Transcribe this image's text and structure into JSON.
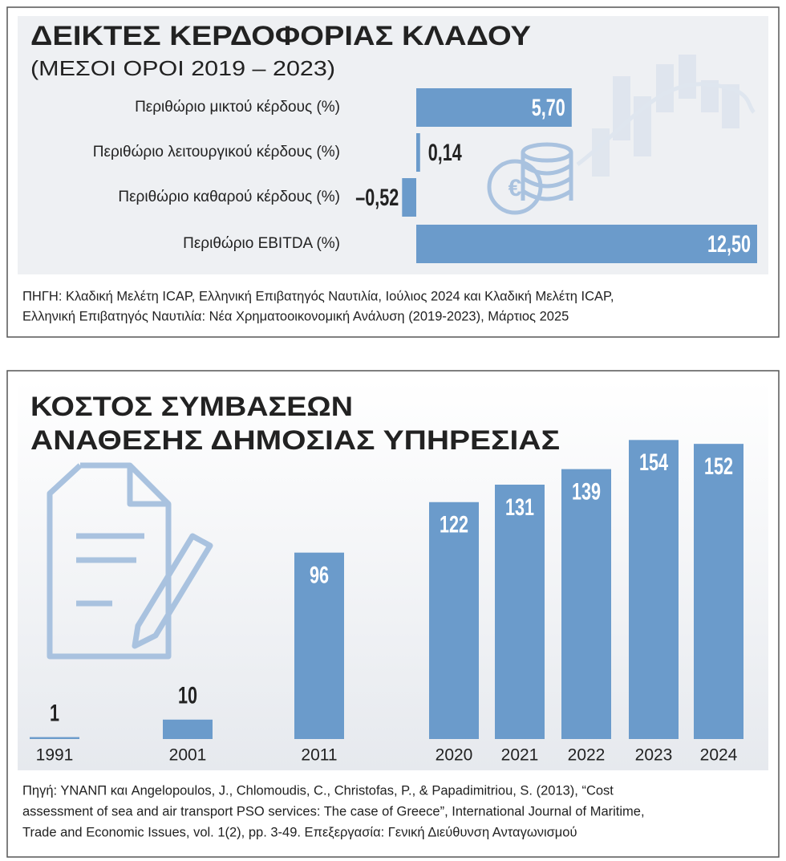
{
  "chart_data": [
    {
      "type": "bar",
      "orientation": "horizontal",
      "title": "ΔΕΙΚΤΕΣ ΚΕΡΔΟΦΟΡΙΑΣ ΚΛΑΔΟΥ",
      "subtitle": "(ΜΕΣΟΙ ΟΡΟΙ 2019 – 2023)",
      "categories": [
        "Περιθώριο μικτού κέρδους (%)",
        "Περιθώριο λειτουργικού κέρδους (%)",
        "Περιθώριο καθαρού κέρδους (%)",
        "Περιθώριο EBITDA (%)"
      ],
      "values": [
        5.7,
        0.14,
        -0.52,
        12.5
      ],
      "value_labels": [
        "5,70",
        "0,14",
        "–0,52",
        "12,50"
      ],
      "color": "#6b9bcb",
      "source": [
        "ΠΗΓΗ: Κλαδική Μελέτη ICAP, Ελληνική Επιβατηγός Ναυτιλία, Ιούλιος 2024 και Κλαδική Μελέτη ICAP,",
        "Ελληνική Επιβατηγός Ναυτιλία: Νέα Χρηματοοικονομική Ανάλυση (2019-2023), Μάρτιος 2025"
      ]
    },
    {
      "type": "bar",
      "orientation": "vertical",
      "title": [
        "ΚΟΣΤΟΣ ΣΥΜΒΑΣΕΩΝ",
        "ΑΝΑΘΕΣΗΣ ΔΗΜΟΣΙΑΣ ΥΠΗΡΕΣΙΑΣ"
      ],
      "categories": [
        "1991",
        "2001",
        "2011",
        "2020",
        "2021",
        "2022",
        "2023",
        "2024"
      ],
      "values": [
        1,
        10,
        96,
        122,
        131,
        139,
        154,
        152
      ],
      "color": "#6b9bcb",
      "source": [
        "Πηγή: ΥΝΑΝΠ και Angelopoulos, J., Chlomoudis, C., Christofas, P., & Papadimitriou, S. (2013), “Cost",
        "assessment of sea and air transport PSO services: The case of Greece”, International Journal of Maritime,",
        "Trade and Economic Issues, vol. 1(2), pp. 3-49. Επεξεργασία: Γενική Διεύθυνση Ανταγωνισμού"
      ]
    }
  ]
}
